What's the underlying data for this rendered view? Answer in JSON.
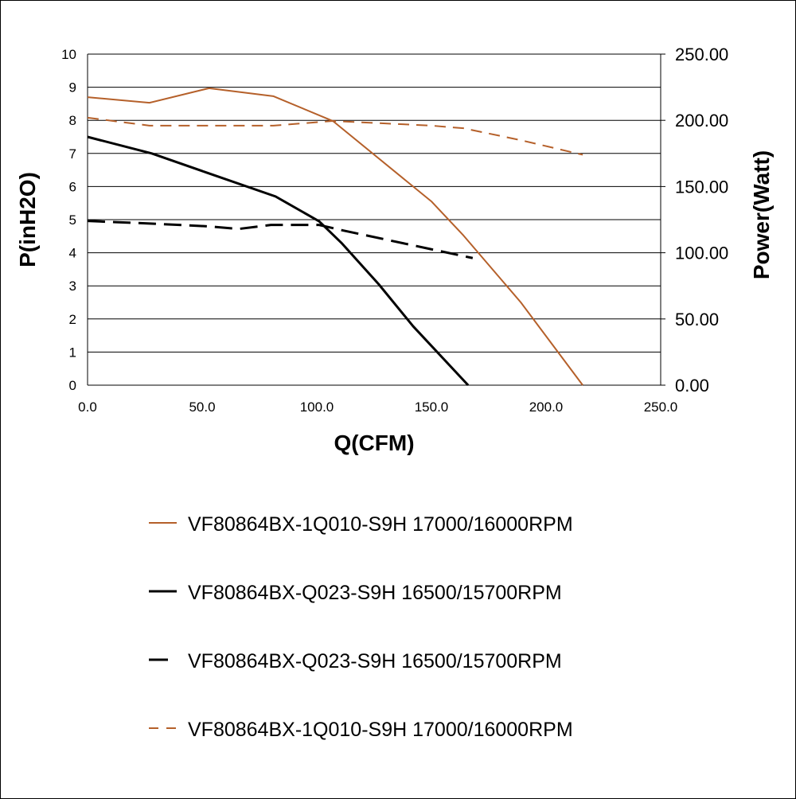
{
  "chart_data": {
    "type": "line",
    "title": "",
    "xlabel": "Q(CFM)",
    "ylabel": "P(inH2O)",
    "y2label": "Power(Watt)",
    "xlim": [
      0,
      250
    ],
    "ylim": [
      0,
      10
    ],
    "y2lim": [
      0,
      250
    ],
    "grid": true,
    "legend_placement": "bottom",
    "x_ticks": [
      "0.0",
      "50.0",
      "100.0",
      "150.0",
      "200.0",
      "250.0"
    ],
    "y_ticks": [
      "0",
      "1",
      "2",
      "3",
      "4",
      "5",
      "6",
      "7",
      "8",
      "9",
      "10"
    ],
    "y2_ticks": [
      "0.00",
      "50.00",
      "100.00",
      "150.00",
      "200.00",
      "250.00"
    ],
    "series": [
      {
        "name": "VF80864BX-1Q010-S9H 17000/16000RPM",
        "axis": "left",
        "style": "solid",
        "color": "#B5602A",
        "x": [
          0,
          27,
          53,
          81,
          107,
          150,
          164,
          189,
          216
        ],
        "y": [
          8.7,
          8.53,
          8.97,
          8.73,
          7.98,
          5.55,
          4.52,
          2.5,
          0
        ]
      },
      {
        "name": "VF80864BX-Q023-S9H 16500/15700RPM",
        "axis": "left",
        "style": "solid",
        "color": "#000000",
        "x": [
          0,
          28,
          52,
          82,
          101,
          111,
          127,
          142,
          166
        ],
        "y": [
          7.5,
          7.0,
          6.42,
          5.7,
          4.95,
          4.28,
          3.05,
          1.78,
          0
        ]
      },
      {
        "name": "VF80864BX-Q023-S9H 16500/15700RPM",
        "axis": "right",
        "style": "dashed",
        "color": "#000000",
        "x": [
          0,
          28,
          52,
          66,
          80,
          101,
          111,
          149,
          168
        ],
        "y": [
          124,
          122,
          120,
          118,
          121,
          121,
          117,
          103,
          96
        ]
      },
      {
        "name": "VF80864BX-1Q010-S9H 17000/16000RPM",
        "axis": "right",
        "style": "dashed",
        "color": "#B5602A",
        "x": [
          0,
          27,
          53,
          81,
          107,
          150,
          164,
          189,
          216
        ],
        "y": [
          202,
          196,
          196,
          196,
          199.5,
          196,
          194,
          185,
          174
        ]
      }
    ]
  }
}
